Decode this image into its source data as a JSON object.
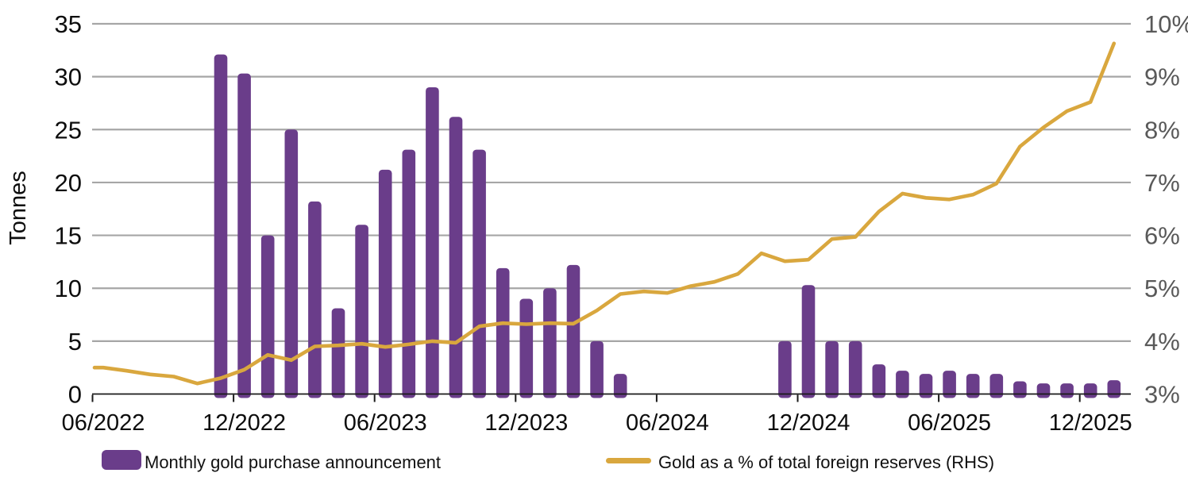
{
  "chart_data": {
    "type": "combo-bar-line",
    "x_months": [
      "06/2022",
      "07/2022",
      "08/2022",
      "09/2022",
      "10/2022",
      "11/2022",
      "12/2022",
      "01/2023",
      "02/2023",
      "03/2023",
      "04/2023",
      "05/2023",
      "06/2023",
      "07/2023",
      "08/2023",
      "09/2023",
      "10/2023",
      "11/2023",
      "12/2023",
      "01/2024",
      "02/2024",
      "03/2024",
      "04/2024",
      "05/2024",
      "06/2024",
      "07/2024",
      "08/2024",
      "09/2024",
      "10/2024",
      "11/2024",
      "12/2024",
      "01/2025",
      "02/2025",
      "03/2025",
      "04/2025",
      "05/2025",
      "06/2025",
      "07/2025",
      "08/2025",
      "09/2025",
      "10/2025",
      "11/2025",
      "12/2025",
      "01/2026"
    ],
    "x_axis_tick_labels": [
      "06/2022",
      "12/2022",
      "06/2023",
      "12/2023",
      "06/2024",
      "12/2024",
      "06/2025",
      "12/2025"
    ],
    "x_axis_tick_indices": [
      0,
      6,
      12,
      18,
      24,
      30,
      36,
      42
    ],
    "bar_series": {
      "name": "Monthly gold purchase announcement",
      "unit": "Tonnes",
      "color": "#6a3d8a",
      "values": [
        null,
        null,
        null,
        null,
        null,
        32.1,
        30.3,
        15,
        25,
        18.2,
        8.1,
        16,
        21.2,
        23.1,
        29,
        26.2,
        23.1,
        11.9,
        9,
        10,
        12.2,
        5,
        1.9,
        null,
        null,
        null,
        null,
        null,
        null,
        5,
        10.3,
        5,
        5,
        2.8,
        2.2,
        1.9,
        2.2,
        1.9,
        1.9,
        1.2,
        1,
        1,
        1,
        1.3
      ]
    },
    "line_series": {
      "name": "Gold as a % of total foreign reserves (RHS)",
      "unit": "%",
      "color": "#d9a73e",
      "values": [
        3.5,
        3.44,
        3.37,
        3.33,
        3.2,
        3.3,
        3.46,
        3.74,
        3.64,
        3.9,
        3.92,
        3.95,
        3.89,
        3.94,
        4,
        3.97,
        4.28,
        4.34,
        4.32,
        4.34,
        4.33,
        4.58,
        4.89,
        4.94,
        4.91,
        5.04,
        5.12,
        5.27,
        5.66,
        5.51,
        5.54,
        5.93,
        5.97,
        6.45,
        6.79,
        6.71,
        6.68,
        6.77,
        6.98,
        7.68,
        8.04,
        8.35,
        8.52,
        9.63
      ]
    },
    "left_axis": {
      "title": "Tonnes",
      "min": 0,
      "max": 35,
      "step": 5,
      "tick_labels": [
        "0",
        "5",
        "10",
        "15",
        "20",
        "25",
        "30",
        "35"
      ]
    },
    "right_axis": {
      "min": 3,
      "max": 10,
      "step": 1,
      "tick_labels": [
        "3%",
        "4%",
        "5%",
        "6%",
        "7%",
        "8%",
        "9%",
        "10%"
      ]
    },
    "grid": {
      "show": true,
      "color": "#a6a6a6"
    },
    "legend_position": "bottom"
  },
  "legend": {
    "items": [
      {
        "label": "Monthly gold purchase announcement",
        "swatch": "bar",
        "color": "#6a3d8a"
      },
      {
        "label": "Gold as a % of total foreign reserves (RHS)",
        "swatch": "line",
        "color": "#d9a73e"
      }
    ]
  }
}
